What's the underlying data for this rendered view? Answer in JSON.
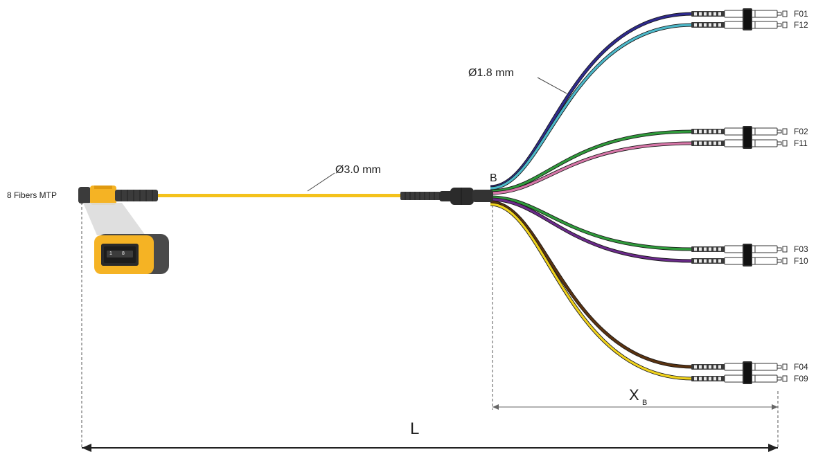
{
  "connector": {
    "label": "8 Fibers MTP",
    "pin_left": "1",
    "pin_right": "8",
    "body_color": "#f5b324",
    "boot_color": "#3b3b3b"
  },
  "trunk": {
    "diameter_label": "Ø3.0 mm",
    "color": "#f4c21c"
  },
  "breakout": {
    "label": "B",
    "fan_diameter_label": "Ø1.8 mm"
  },
  "legs": [
    {
      "label": "F01",
      "color": "#2e2a8c"
    },
    {
      "label": "F12",
      "color": "#4cb8c9"
    },
    {
      "label": "F02",
      "color": "#2f9a3b"
    },
    {
      "label": "F11",
      "color": "#d776a8"
    },
    {
      "label": "F03",
      "color": "#2f9a3b"
    },
    {
      "label": "F10",
      "color": "#6a2a8a"
    },
    {
      "label": "F04",
      "color": "#5a3210"
    },
    {
      "label": "F09",
      "color": "#f0d21c"
    }
  ],
  "dimensions": {
    "fan_length_main": "X",
    "fan_length_sub": "B",
    "total_length": "L"
  }
}
